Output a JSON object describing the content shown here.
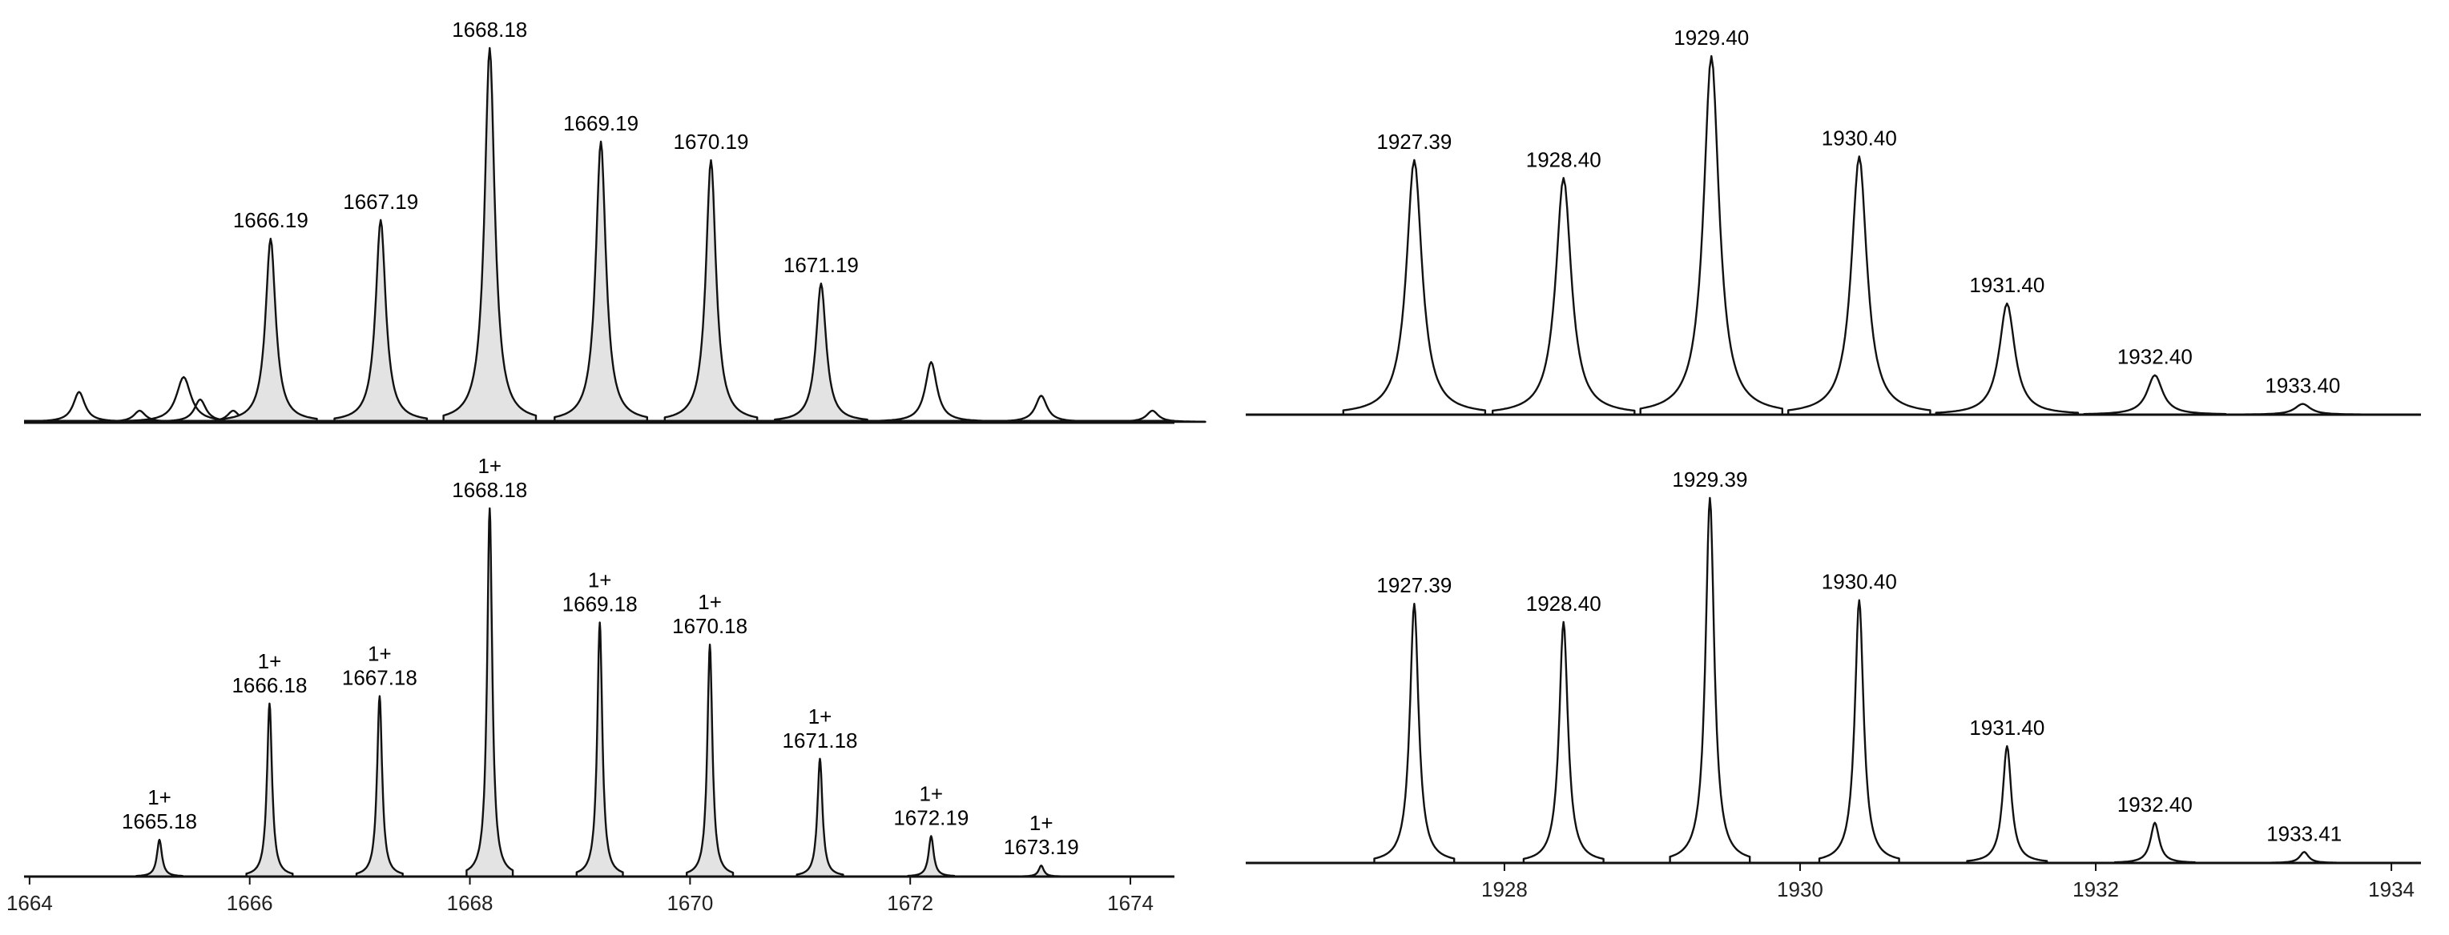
{
  "chart_data": [
    {
      "type": "line",
      "title": "",
      "xlabel": "",
      "ylabel": "",
      "xlim": [
        1663.95,
        1674.4
      ],
      "ylim": [
        0,
        100
      ],
      "filled_peaks": true,
      "labels": [
        {
          "x": 1666.19,
          "text": "1666.19"
        },
        {
          "x": 1667.19,
          "text": "1667.19"
        },
        {
          "x": 1668.18,
          "text": "1668.18"
        },
        {
          "x": 1669.19,
          "text": "1669.19"
        },
        {
          "x": 1670.19,
          "text": "1670.19"
        },
        {
          "x": 1671.19,
          "text": "1671.19"
        }
      ],
      "peaks": [
        {
          "x": 1664.45,
          "y": 8,
          "w": 0.08,
          "filled": false
        },
        {
          "x": 1665.0,
          "y": 3,
          "w": 0.08,
          "filled": false
        },
        {
          "x": 1665.4,
          "y": 12,
          "w": 0.1,
          "filled": false
        },
        {
          "x": 1665.55,
          "y": 6,
          "w": 0.08,
          "filled": false
        },
        {
          "x": 1665.85,
          "y": 3,
          "w": 0.08,
          "filled": false
        },
        {
          "x": 1666.19,
          "y": 49,
          "w": 0.07,
          "filled": true
        },
        {
          "x": 1667.19,
          "y": 54,
          "w": 0.07,
          "filled": true
        },
        {
          "x": 1668.18,
          "y": 100,
          "w": 0.07,
          "filled": true
        },
        {
          "x": 1669.19,
          "y": 75,
          "w": 0.07,
          "filled": true
        },
        {
          "x": 1670.19,
          "y": 70,
          "w": 0.07,
          "filled": true
        },
        {
          "x": 1671.19,
          "y": 37,
          "w": 0.07,
          "filled": true
        },
        {
          "x": 1672.19,
          "y": 16,
          "w": 0.08,
          "filled": false
        },
        {
          "x": 1673.19,
          "y": 7,
          "w": 0.08,
          "filled": false
        },
        {
          "x": 1674.2,
          "y": 3,
          "w": 0.08,
          "filled": false
        }
      ]
    },
    {
      "type": "line",
      "title": "",
      "xlabel": "",
      "ylabel": "",
      "xlim": [
        1663.95,
        1674.4
      ],
      "ylim": [
        0,
        100
      ],
      "x_ticks": [
        "1664",
        "1666",
        "1668",
        "1670",
        "1672",
        "1674"
      ],
      "filled_peaks": true,
      "labels": [
        {
          "x": 1665.18,
          "charge": "1+",
          "text": "1665.18"
        },
        {
          "x": 1666.18,
          "charge": "1+",
          "text": "1666.18"
        },
        {
          "x": 1667.18,
          "charge": "1+",
          "text": "1667.18"
        },
        {
          "x": 1668.18,
          "charge": "1+",
          "text": "1668.18"
        },
        {
          "x": 1669.18,
          "charge": "1+",
          "text": "1669.18"
        },
        {
          "x": 1670.18,
          "charge": "1+",
          "text": "1670.18"
        },
        {
          "x": 1671.18,
          "charge": "1+",
          "text": "1671.18"
        },
        {
          "x": 1672.19,
          "charge": "1+",
          "text": "1672.19"
        },
        {
          "x": 1673.19,
          "charge": "1+",
          "text": "1673.19"
        }
      ],
      "peaks": [
        {
          "x": 1665.18,
          "y": 10,
          "w": 0.035,
          "filled": true
        },
        {
          "x": 1666.18,
          "y": 47,
          "w": 0.035,
          "filled": true
        },
        {
          "x": 1667.18,
          "y": 49,
          "w": 0.035,
          "filled": true
        },
        {
          "x": 1668.18,
          "y": 100,
          "w": 0.035,
          "filled": true
        },
        {
          "x": 1669.18,
          "y": 69,
          "w": 0.035,
          "filled": true
        },
        {
          "x": 1670.18,
          "y": 63,
          "w": 0.035,
          "filled": true
        },
        {
          "x": 1671.18,
          "y": 32,
          "w": 0.035,
          "filled": true
        },
        {
          "x": 1672.19,
          "y": 11,
          "w": 0.035,
          "filled": true
        },
        {
          "x": 1673.19,
          "y": 3,
          "w": 0.035,
          "filled": true
        }
      ]
    },
    {
      "type": "line",
      "title": "",
      "xlabel": "",
      "ylabel": "",
      "xlim": [
        1926.25,
        1934.2
      ],
      "ylim": [
        0,
        100
      ],
      "filled_peaks": false,
      "labels": [
        {
          "x": 1927.39,
          "text": "1927.39"
        },
        {
          "x": 1928.4,
          "text": "1928.40"
        },
        {
          "x": 1929.4,
          "text": "1929.40"
        },
        {
          "x": 1930.4,
          "text": "1930.40"
        },
        {
          "x": 1931.4,
          "text": "1931.40"
        },
        {
          "x": 1932.4,
          "text": "1932.40"
        },
        {
          "x": 1933.4,
          "text": "1933.40"
        }
      ],
      "peaks": [
        {
          "x": 1927.39,
          "y": 71,
          "w": 0.08,
          "filled": false
        },
        {
          "x": 1928.4,
          "y": 66,
          "w": 0.08,
          "filled": false
        },
        {
          "x": 1929.4,
          "y": 100,
          "w": 0.08,
          "filled": false
        },
        {
          "x": 1930.4,
          "y": 72,
          "w": 0.08,
          "filled": false
        },
        {
          "x": 1931.4,
          "y": 31,
          "w": 0.08,
          "filled": false
        },
        {
          "x": 1932.4,
          "y": 11,
          "w": 0.08,
          "filled": false
        },
        {
          "x": 1933.4,
          "y": 3,
          "w": 0.08,
          "filled": false
        }
      ]
    },
    {
      "type": "line",
      "title": "",
      "xlabel": "",
      "ylabel": "",
      "xlim": [
        1926.25,
        1934.2
      ],
      "ylim": [
        0,
        100
      ],
      "x_ticks": [
        "1928",
        "1930",
        "1932",
        "1934"
      ],
      "filled_peaks": false,
      "labels": [
        {
          "x": 1927.39,
          "text": "1927.39"
        },
        {
          "x": 1928.4,
          "text": "1928.40"
        },
        {
          "x": 1929.39,
          "text": "1929.39"
        },
        {
          "x": 1930.4,
          "text": "1930.40"
        },
        {
          "x": 1931.4,
          "text": "1931.40"
        },
        {
          "x": 1932.4,
          "text": "1932.40"
        },
        {
          "x": 1933.41,
          "text": "1933.41"
        }
      ],
      "peaks": [
        {
          "x": 1927.39,
          "y": 71,
          "w": 0.045,
          "filled": false
        },
        {
          "x": 1928.4,
          "y": 66,
          "w": 0.045,
          "filled": false
        },
        {
          "x": 1929.39,
          "y": 100,
          "w": 0.045,
          "filled": false
        },
        {
          "x": 1930.4,
          "y": 72,
          "w": 0.045,
          "filled": false
        },
        {
          "x": 1931.4,
          "y": 32,
          "w": 0.045,
          "filled": false
        },
        {
          "x": 1932.4,
          "y": 11,
          "w": 0.045,
          "filled": false
        },
        {
          "x": 1933.41,
          "y": 3,
          "w": 0.045,
          "filled": false
        }
      ]
    }
  ]
}
